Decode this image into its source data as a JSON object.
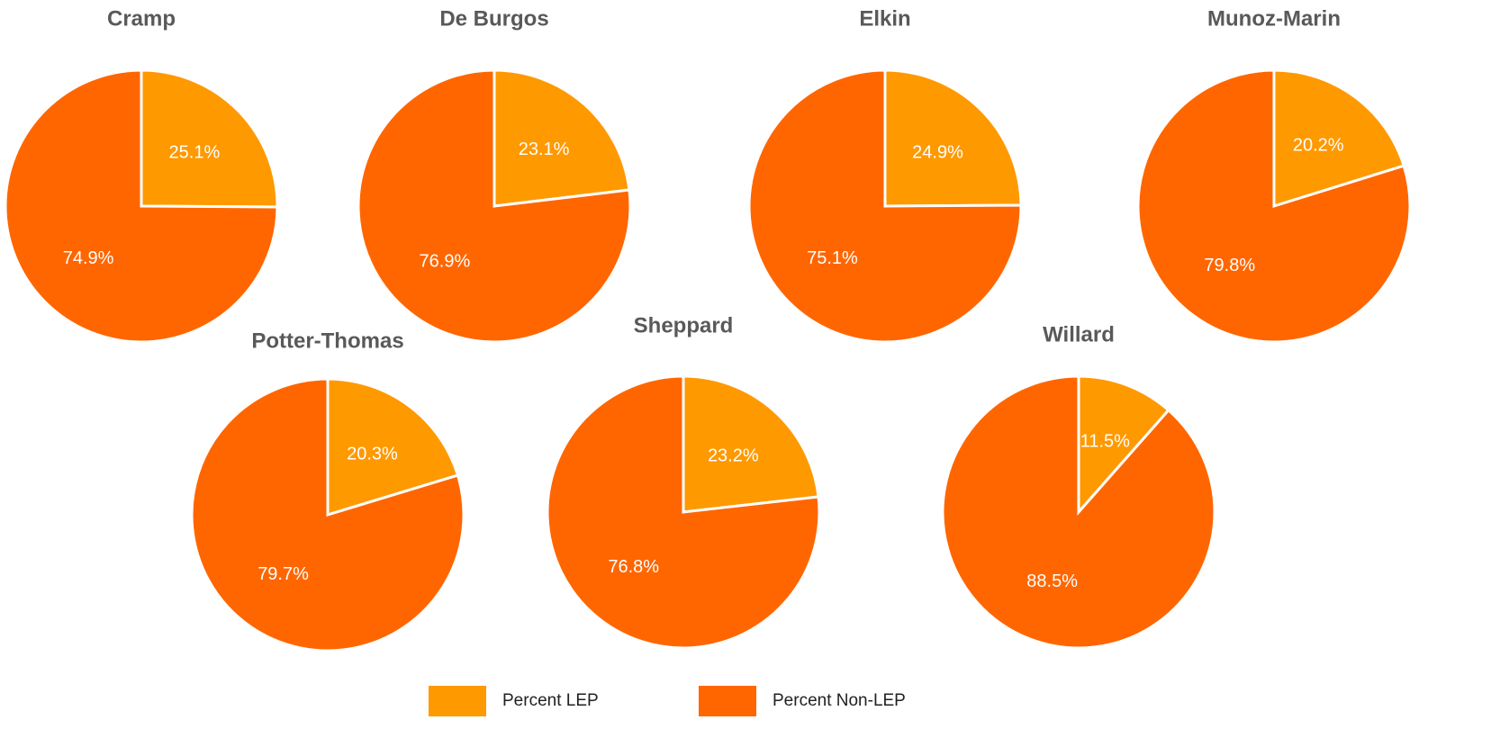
{
  "legend": {
    "labels": [
      "Percent LEP",
      "Percent Non-LEP"
    ],
    "colors": [
      "#ff9900",
      "#ff6600"
    ]
  },
  "chart_data": [
    {
      "type": "pie",
      "title": "Cramp",
      "values": [
        25.1,
        74.9
      ],
      "value_labels": [
        "25.1%",
        "74.9%"
      ]
    },
    {
      "type": "pie",
      "title": "De Burgos",
      "values": [
        23.1,
        76.9
      ],
      "value_labels": [
        "23.1%",
        "76.9%"
      ]
    },
    {
      "type": "pie",
      "title": "Elkin",
      "values": [
        24.9,
        75.1
      ],
      "value_labels": [
        "24.9%",
        "75.1%"
      ]
    },
    {
      "type": "pie",
      "title": "Munoz-Marin",
      "values": [
        20.2,
        79.8
      ],
      "value_labels": [
        "20.2%",
        "79.8%"
      ]
    },
    {
      "type": "pie",
      "title": "Potter-Thomas",
      "values": [
        20.3,
        79.7
      ],
      "value_labels": [
        "20.3%",
        "79.7%"
      ]
    },
    {
      "type": "pie",
      "title": "Sheppard",
      "values": [
        23.2,
        76.8
      ],
      "value_labels": [
        "23.2%",
        "76.8%"
      ]
    },
    {
      "type": "pie",
      "title": "Willard",
      "values": [
        11.5,
        88.5
      ],
      "value_labels": [
        "11.5%",
        "88.5%"
      ]
    }
  ]
}
